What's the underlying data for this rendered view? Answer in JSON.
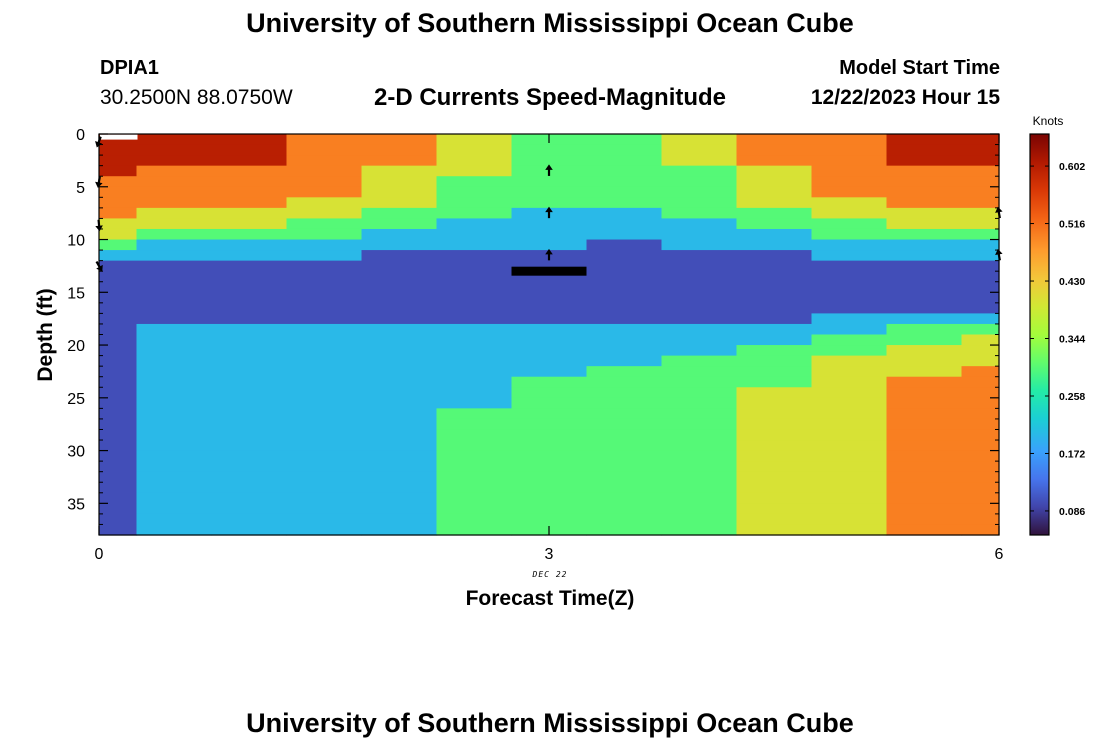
{
  "header": {
    "title": "University of Southern Mississippi Ocean Cube",
    "station_id": "DPIA1",
    "station_coords": "30.2500N  88.0750W",
    "plot_title": "2-D Currents Speed-Magnitude",
    "model_start_label": "Model Start Time",
    "model_start_value": "12/22/2023 Hour 15"
  },
  "footer": {
    "title": "University of Southern Mississippi Ocean Cube"
  },
  "chart_data": {
    "type": "heatmap",
    "title": "2-D Currents Speed-Magnitude",
    "xlabel": "Forecast Time(Z)",
    "ylabel": "Depth (ft)",
    "x_ticks": [
      0,
      3,
      6
    ],
    "x_tick_labels": [
      "0",
      "3",
      "6"
    ],
    "x_sublabel": "DEC 22",
    "xlim": [
      0,
      6
    ],
    "y_ticks": [
      0,
      5,
      10,
      15,
      20,
      25,
      30,
      35
    ],
    "y_tick_labels": [
      "0",
      "5",
      "10",
      "15",
      "20",
      "25",
      "30",
      "35"
    ],
    "ylim": [
      0,
      38
    ],
    "y_inverted": true,
    "time_steps": [
      0,
      0.5,
      1,
      1.5,
      2,
      2.5,
      3,
      3.5,
      4,
      4.5,
      5,
      5.5,
      6
    ],
    "depth_bins_ft": [
      0,
      1,
      2,
      3,
      4,
      5,
      6,
      7,
      8,
      9,
      10,
      11,
      12,
      13,
      14,
      15,
      16,
      17,
      18,
      19,
      20,
      21,
      22,
      23,
      24,
      25,
      26,
      27,
      28,
      29,
      30,
      31,
      32,
      33,
      34,
      35,
      36,
      37
    ],
    "speed_knots": [
      [
        0.6,
        0.6,
        0.6,
        0.6,
        0.5,
        0.5,
        0.5,
        0.5,
        0.4,
        0.4,
        0.3,
        0.2,
        0.1,
        0.1,
        0.1,
        0.1,
        0.1,
        0.1,
        0.1,
        0.1,
        0.1,
        0.1,
        0.1,
        0.1,
        0.1,
        0.1,
        0.1,
        0.1,
        0.1,
        0.1,
        0.1,
        0.1,
        0.1,
        0.1,
        0.1,
        0.1,
        0.1,
        0.1
      ],
      [
        0.6,
        0.6,
        0.6,
        0.5,
        0.5,
        0.5,
        0.5,
        0.4,
        0.4,
        0.3,
        0.2,
        0.2,
        0.1,
        0.1,
        0.1,
        0.1,
        0.1,
        0.1,
        0.2,
        0.2,
        0.2,
        0.2,
        0.2,
        0.2,
        0.2,
        0.2,
        0.2,
        0.2,
        0.2,
        0.2,
        0.2,
        0.2,
        0.2,
        0.2,
        0.2,
        0.2,
        0.2,
        0.2
      ],
      [
        0.6,
        0.6,
        0.6,
        0.5,
        0.5,
        0.5,
        0.5,
        0.4,
        0.4,
        0.3,
        0.2,
        0.2,
        0.1,
        0.1,
        0.1,
        0.1,
        0.1,
        0.1,
        0.2,
        0.2,
        0.2,
        0.2,
        0.2,
        0.2,
        0.2,
        0.2,
        0.2,
        0.2,
        0.2,
        0.2,
        0.2,
        0.2,
        0.2,
        0.2,
        0.2,
        0.2,
        0.2,
        0.2
      ],
      [
        0.5,
        0.5,
        0.5,
        0.5,
        0.5,
        0.5,
        0.4,
        0.4,
        0.3,
        0.3,
        0.2,
        0.2,
        0.1,
        0.1,
        0.1,
        0.1,
        0.1,
        0.1,
        0.2,
        0.2,
        0.2,
        0.2,
        0.2,
        0.2,
        0.2,
        0.2,
        0.2,
        0.2,
        0.2,
        0.2,
        0.2,
        0.2,
        0.2,
        0.2,
        0.2,
        0.2,
        0.2,
        0.2
      ],
      [
        0.5,
        0.5,
        0.5,
        0.4,
        0.4,
        0.4,
        0.4,
        0.3,
        0.3,
        0.2,
        0.2,
        0.1,
        0.1,
        0.1,
        0.1,
        0.1,
        0.1,
        0.1,
        0.2,
        0.2,
        0.2,
        0.2,
        0.2,
        0.2,
        0.2,
        0.2,
        0.2,
        0.2,
        0.2,
        0.2,
        0.2,
        0.2,
        0.2,
        0.2,
        0.2,
        0.2,
        0.2,
        0.2
      ],
      [
        0.4,
        0.4,
        0.4,
        0.4,
        0.3,
        0.3,
        0.3,
        0.3,
        0.2,
        0.2,
        0.2,
        0.1,
        0.1,
        0.1,
        0.1,
        0.1,
        0.1,
        0.1,
        0.2,
        0.2,
        0.2,
        0.2,
        0.2,
        0.2,
        0.2,
        0.2,
        0.3,
        0.3,
        0.3,
        0.3,
        0.3,
        0.3,
        0.3,
        0.3,
        0.3,
        0.3,
        0.3,
        0.3
      ],
      [
        0.3,
        0.3,
        0.3,
        0.3,
        0.3,
        0.3,
        0.3,
        0.2,
        0.2,
        0.2,
        0.2,
        0.1,
        0.1,
        0.1,
        0.1,
        0.1,
        0.1,
        0.1,
        0.2,
        0.2,
        0.2,
        0.2,
        0.2,
        0.3,
        0.3,
        0.3,
        0.3,
        0.3,
        0.3,
        0.3,
        0.3,
        0.3,
        0.3,
        0.3,
        0.3,
        0.3,
        0.3,
        0.3
      ],
      [
        0.3,
        0.3,
        0.3,
        0.3,
        0.3,
        0.3,
        0.3,
        0.2,
        0.2,
        0.2,
        0.1,
        0.1,
        0.1,
        0.1,
        0.1,
        0.1,
        0.1,
        0.1,
        0.2,
        0.2,
        0.2,
        0.2,
        0.3,
        0.3,
        0.3,
        0.3,
        0.3,
        0.3,
        0.3,
        0.3,
        0.3,
        0.3,
        0.3,
        0.3,
        0.3,
        0.3,
        0.3,
        0.3
      ],
      [
        0.4,
        0.4,
        0.4,
        0.3,
        0.3,
        0.3,
        0.3,
        0.3,
        0.2,
        0.2,
        0.2,
        0.1,
        0.1,
        0.1,
        0.1,
        0.1,
        0.1,
        0.1,
        0.2,
        0.2,
        0.2,
        0.3,
        0.3,
        0.3,
        0.3,
        0.3,
        0.3,
        0.3,
        0.3,
        0.3,
        0.3,
        0.3,
        0.3,
        0.3,
        0.3,
        0.3,
        0.3,
        0.3
      ],
      [
        0.5,
        0.5,
        0.5,
        0.4,
        0.4,
        0.4,
        0.4,
        0.3,
        0.3,
        0.2,
        0.2,
        0.1,
        0.1,
        0.1,
        0.1,
        0.1,
        0.1,
        0.1,
        0.2,
        0.2,
        0.3,
        0.3,
        0.3,
        0.3,
        0.4,
        0.4,
        0.4,
        0.4,
        0.4,
        0.4,
        0.4,
        0.4,
        0.4,
        0.4,
        0.4,
        0.4,
        0.4,
        0.4
      ],
      [
        0.5,
        0.5,
        0.5,
        0.5,
        0.5,
        0.5,
        0.4,
        0.4,
        0.3,
        0.3,
        0.2,
        0.2,
        0.1,
        0.1,
        0.1,
        0.1,
        0.1,
        0.2,
        0.2,
        0.3,
        0.3,
        0.4,
        0.4,
        0.4,
        0.4,
        0.4,
        0.4,
        0.4,
        0.4,
        0.4,
        0.4,
        0.4,
        0.4,
        0.4,
        0.4,
        0.4,
        0.4,
        0.4
      ],
      [
        0.6,
        0.6,
        0.6,
        0.5,
        0.5,
        0.5,
        0.5,
        0.4,
        0.4,
        0.3,
        0.2,
        0.2,
        0.1,
        0.1,
        0.1,
        0.1,
        0.1,
        0.2,
        0.3,
        0.3,
        0.4,
        0.4,
        0.4,
        0.5,
        0.5,
        0.5,
        0.5,
        0.5,
        0.5,
        0.5,
        0.5,
        0.5,
        0.5,
        0.5,
        0.5,
        0.5,
        0.5,
        0.5
      ],
      [
        0.6,
        0.6,
        0.6,
        0.5,
        0.5,
        0.5,
        0.5,
        0.4,
        0.4,
        0.3,
        0.2,
        0.2,
        0.1,
        0.1,
        0.1,
        0.1,
        0.1,
        0.2,
        0.3,
        0.4,
        0.4,
        0.4,
        0.5,
        0.5,
        0.5,
        0.5,
        0.5,
        0.5,
        0.5,
        0.5,
        0.5,
        0.5,
        0.5,
        0.5,
        0.5,
        0.5,
        0.5,
        0.5
      ]
    ],
    "colorbar": {
      "label": "Knots",
      "ticks": [
        0.086,
        0.172,
        0.258,
        0.344,
        0.43,
        0.516,
        0.602
      ],
      "tick_labels": [
        "0.086",
        "0.172",
        "0.258",
        "0.344",
        "0.430",
        "0.516",
        "0.602"
      ],
      "range": [
        0.05,
        0.65
      ]
    },
    "vectors": [
      {
        "time": 0,
        "depth": 0.7,
        "direction_deg": 200
      },
      {
        "time": 0,
        "depth": 4.5,
        "direction_deg": 190
      },
      {
        "time": 0,
        "depth": 8.6,
        "direction_deg": 175
      },
      {
        "time": 0,
        "depth": 12.5,
        "direction_deg": 150
      },
      {
        "time": 3,
        "depth": 3.5,
        "direction_deg": 0
      },
      {
        "time": 3,
        "depth": 7.5,
        "direction_deg": 0
      },
      {
        "time": 3,
        "depth": 11.5,
        "direction_deg": 0
      },
      {
        "time": 6,
        "depth": 7.5,
        "direction_deg": 350
      },
      {
        "time": 6,
        "depth": 11.5,
        "direction_deg": 350
      }
    ],
    "markers": [
      {
        "type": "bottom-bar",
        "time_start": 2.75,
        "time_end": 3.25,
        "depth": 13
      },
      {
        "type": "surface-bar",
        "time_start": 0,
        "time_end": 0.25,
        "depth": 0
      }
    ]
  }
}
